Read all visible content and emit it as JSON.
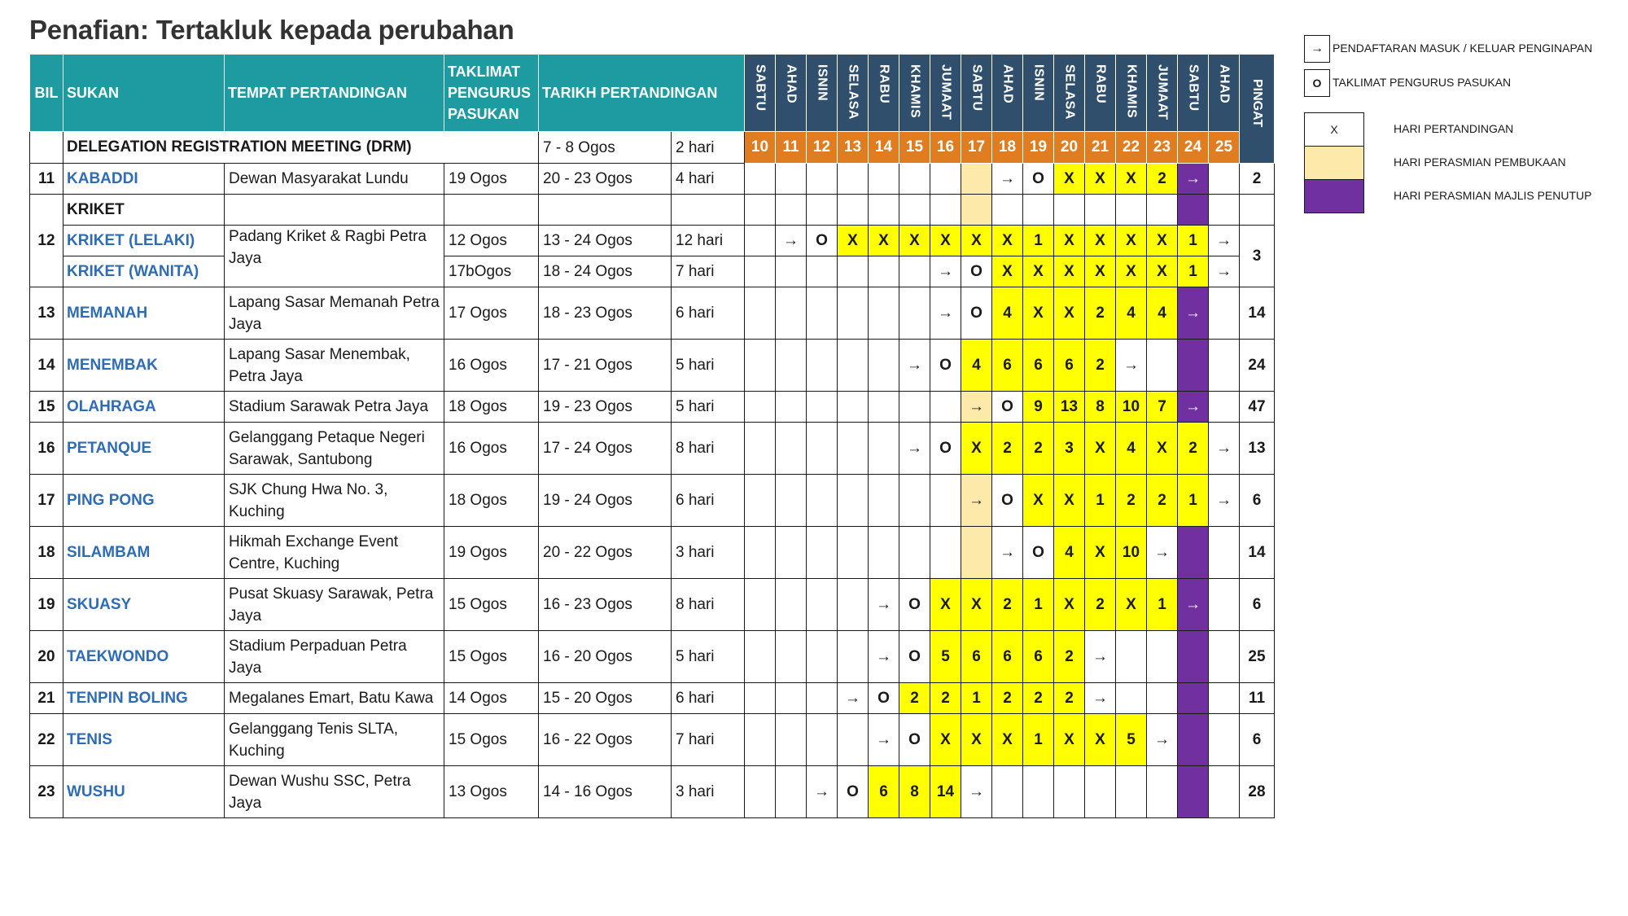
{
  "title": "Penafian: Tertakluk kepada perubahan",
  "header": {
    "bil": "BIL",
    "sukan": "SUKAN",
    "tempat": "TEMPAT PERTANDINGAN",
    "taklimat": "TAKLIMAT PENGURUS PASUKAN",
    "tarikh": "TARIKH PERTANDINGAN",
    "pingat": "PINGAT",
    "days": [
      "SABTU",
      "AHAD",
      "ISNIN",
      "SELASA",
      "RABU",
      "KHAMIS",
      "JUMAAT",
      "SABTU",
      "AHAD",
      "ISNIN",
      "SELASA",
      "RABU",
      "KHAMIS",
      "JUMAAT",
      "SABTU",
      "AHAD"
    ],
    "dates": [
      "10",
      "11",
      "12",
      "13",
      "14",
      "15",
      "16",
      "17",
      "18",
      "19",
      "20",
      "21",
      "22",
      "23",
      "24",
      "25"
    ]
  },
  "drm": {
    "label": "DELEGATION REGISTRATION MEETING (DRM)",
    "dates": "7 - 8 Ogos",
    "duration": "2 hari"
  },
  "legend": {
    "arrow_symbol": "→",
    "arrow_label": "PENDAFTARAN MASUK / KELUAR PENGINAPAN",
    "o_symbol": "O",
    "o_label": "TAKLIMAT PENGURUS PASUKAN",
    "x_symbol": "X",
    "x_label": "HARI PERTANDINGAN",
    "peach_label": "HARI PERASMIAN PEMBUKAAN",
    "purple_label": "HARI PERASMIAN MAJLIS PENUTUP",
    "colors": {
      "yellow": "#ffff00",
      "peach": "#fde9a9",
      "purple": "#7030a0",
      "teal": "#1d9ba0",
      "navy": "#2f4f6c",
      "orange": "#e07d21",
      "sport_blue": "#2f6cb6"
    }
  },
  "rows": [
    {
      "bil": "11",
      "sport": "KABADDI",
      "venue": "Dewan Masyarakat Lundu",
      "taklimat": "19 Ogos",
      "dates": "20 - 23 Ogos",
      "duration": "4 hari",
      "cells": [
        "",
        "",
        "",
        "",
        "",
        "",
        "",
        "",
        "→",
        "O",
        "X",
        "X",
        "X",
        "2",
        "→",
        ""
      ],
      "pingat": "2"
    },
    {
      "bil": "12",
      "sport": "KRIKET",
      "header_only": true,
      "venue": "Padang Kriket & Ragbi Petra Jaya",
      "pingat": "3"
    },
    {
      "sport": "KRIKET (LELAKI)",
      "taklimat": "12 Ogos",
      "dates": "13 - 24 Ogos",
      "duration": "12 hari",
      "cells": [
        "",
        "→",
        "O",
        "X",
        "X",
        "X",
        "X",
        "X",
        "X",
        "1",
        "X",
        "X",
        "X",
        "X",
        "1",
        "→"
      ]
    },
    {
      "sport": "KRIKET (WANITA)",
      "taklimat": "17bOgos",
      "dates": "18 - 24 Ogos",
      "duration": "7 hari",
      "cells": [
        "",
        "",
        "",
        "",
        "",
        "",
        "→",
        "O",
        "X",
        "X",
        "X",
        "X",
        "X",
        "X",
        "1",
        "→"
      ]
    },
    {
      "bil": "13",
      "sport": "MEMANAH",
      "venue": "Lapang Sasar Memanah Petra Jaya",
      "taklimat": "17 Ogos",
      "dates": "18 - 23 Ogos",
      "duration": "6 hari",
      "cells": [
        "",
        "",
        "",
        "",
        "",
        "",
        "→",
        "O",
        "4",
        "X",
        "X",
        "2",
        "4",
        "4",
        "→",
        ""
      ],
      "pingat": "14"
    },
    {
      "bil": "14",
      "sport": "MENEMBAK",
      "venue": "Lapang Sasar Menembak, Petra Jaya",
      "taklimat": "16 Ogos",
      "dates": "17 - 21 Ogos",
      "duration": "5 hari",
      "cells": [
        "",
        "",
        "",
        "",
        "",
        "→",
        "O",
        "4",
        "6",
        "6",
        "6",
        "2",
        "→",
        "",
        "",
        ""
      ],
      "pingat": "24"
    },
    {
      "bil": "15",
      "sport": "OLAHRAGA",
      "venue": "Stadium Sarawak Petra Jaya",
      "taklimat": "18 Ogos",
      "dates": "19 - 23 Ogos",
      "duration": "5 hari",
      "cells": [
        "",
        "",
        "",
        "",
        "",
        "",
        "",
        "→",
        "O",
        "9",
        "13",
        "8",
        "10",
        "7",
        "→",
        ""
      ],
      "pingat": "47"
    },
    {
      "bil": "16",
      "sport": "PETANQUE",
      "venue": "Gelanggang Petaque Negeri Sarawak, Santubong",
      "taklimat": "16 Ogos",
      "dates": "17 - 24 Ogos",
      "duration": "8 hari",
      "cells": [
        "",
        "",
        "",
        "",
        "",
        "→",
        "O",
        "X",
        "2",
        "2",
        "3",
        "X",
        "4",
        "X",
        "2",
        "→"
      ],
      "pingat": "13"
    },
    {
      "bil": "17",
      "sport": "PING PONG",
      "venue": "SJK Chung Hwa No. 3, Kuching",
      "taklimat": "18 Ogos",
      "dates": "19 - 24 Ogos",
      "duration": "6 hari",
      "cells": [
        "",
        "",
        "",
        "",
        "",
        "",
        "",
        "→",
        "O",
        "X",
        "X",
        "1",
        "2",
        "2",
        "1",
        "→"
      ],
      "pingat": "6"
    },
    {
      "bil": "18",
      "sport": "SILAMBAM",
      "venue": "Hikmah Exchange Event Centre, Kuching",
      "taklimat": "19 Ogos",
      "dates": "20 - 22 Ogos",
      "duration": "3 hari",
      "cells": [
        "",
        "",
        "",
        "",
        "",
        "",
        "",
        "",
        "→",
        "O",
        "4",
        "X",
        "10",
        "→",
        "",
        ""
      ],
      "pingat": "14"
    },
    {
      "bil": "19",
      "sport": "SKUASY",
      "venue": "Pusat Skuasy Sarawak, Petra Jaya",
      "taklimat": "15 Ogos",
      "dates": "16 - 23 Ogos",
      "duration": "8 hari",
      "cells": [
        "",
        "",
        "",
        "",
        "→",
        "O",
        "X",
        "X",
        "2",
        "1",
        "X",
        "2",
        "X",
        "1",
        "→",
        ""
      ],
      "pingat": "6"
    },
    {
      "bil": "20",
      "sport": "TAEKWONDO",
      "venue": "Stadium Perpaduan Petra Jaya",
      "taklimat": "15 Ogos",
      "dates": "16 - 20 Ogos",
      "duration": "5 hari",
      "cells": [
        "",
        "",
        "",
        "",
        "→",
        "O",
        "5",
        "6",
        "6",
        "6",
        "2",
        "→",
        "",
        "",
        "",
        ""
      ],
      "pingat": "25"
    },
    {
      "bil": "21",
      "sport": "TENPIN BOLING",
      "venue": "Megalanes Emart, Batu Kawa",
      "taklimat": "14 Ogos",
      "dates": "15 - 20 Ogos",
      "duration": "6 hari",
      "cells": [
        "",
        "",
        "",
        "→",
        "O",
        "2",
        "2",
        "1",
        "2",
        "2",
        "2",
        "→",
        "",
        "",
        "",
        ""
      ],
      "pingat": "11"
    },
    {
      "bil": "22",
      "sport": "TENIS",
      "venue": "Gelanggang Tenis SLTA, Kuching",
      "taklimat": "15 Ogos",
      "dates": "16 - 22 Ogos",
      "duration": "7 hari",
      "cells": [
        "",
        "",
        "",
        "",
        "→",
        "O",
        "X",
        "X",
        "X",
        "1",
        "X",
        "X",
        "5",
        "→",
        "",
        ""
      ],
      "pingat": "6"
    },
    {
      "bil": "23",
      "sport": "WUSHU",
      "venue": "Dewan Wushu SSC, Petra Jaya",
      "taklimat": "13 Ogos",
      "dates": "14 - 16 Ogos",
      "duration": "3 hari",
      "cells": [
        "",
        "",
        "→",
        "O",
        "6",
        "8",
        "14",
        "→",
        "",
        "",
        "",
        "",
        "",
        "",
        "",
        ""
      ],
      "pingat": "28"
    }
  ]
}
